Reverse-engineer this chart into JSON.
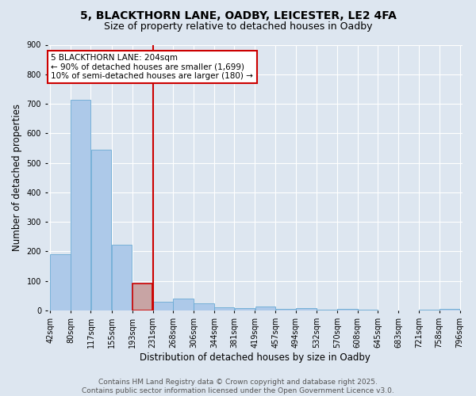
{
  "title1": "5, BLACKTHORN LANE, OADBY, LEICESTER, LE2 4FA",
  "title2": "Size of property relative to detached houses in Oadby",
  "xlabel": "Distribution of detached houses by size in Oadby",
  "ylabel": "Number of detached properties",
  "bar_heights": [
    190,
    714,
    545,
    222,
    90,
    30,
    40,
    25,
    10,
    8,
    12,
    5,
    8,
    3,
    5,
    2,
    1,
    1,
    2,
    5
  ],
  "bin_edges": [
    42,
    80,
    117,
    155,
    193,
    231,
    268,
    306,
    344,
    381,
    419,
    457,
    494,
    532,
    570,
    608,
    645,
    683,
    721,
    758,
    796
  ],
  "x_labels": [
    "42sqm",
    "80sqm",
    "117sqm",
    "155sqm",
    "193sqm",
    "231sqm",
    "268sqm",
    "306sqm",
    "344sqm",
    "381sqm",
    "419sqm",
    "457sqm",
    "494sqm",
    "532sqm",
    "570sqm",
    "608sqm",
    "645sqm",
    "683sqm",
    "721sqm",
    "758sqm",
    "796sqm"
  ],
  "highlight_bar_index": 4,
  "bar_color": "#adc9e9",
  "highlight_bar_color": "#c8a4a4",
  "bar_edge_color": "#6aaad4",
  "highlight_bar_edge_color": "#cc0000",
  "vline_x": 231,
  "vline_color": "#cc0000",
  "annotation_text": "5 BLACKTHORN LANE: 204sqm\n← 90% of detached houses are smaller (1,699)\n10% of semi-detached houses are larger (180) →",
  "annotation_box_color": "#cc0000",
  "background_color": "#dde6f0",
  "plot_bg_color": "#dde6f0",
  "ylim": [
    0,
    900
  ],
  "yticks": [
    0,
    100,
    200,
    300,
    400,
    500,
    600,
    700,
    800,
    900
  ],
  "footnote": "Contains HM Land Registry data © Crown copyright and database right 2025.\nContains public sector information licensed under the Open Government Licence v3.0.",
  "title_fontsize": 10,
  "subtitle_fontsize": 9,
  "axis_label_fontsize": 8.5,
  "tick_fontsize": 7,
  "annot_fontsize": 7.5,
  "footnote_fontsize": 6.5
}
